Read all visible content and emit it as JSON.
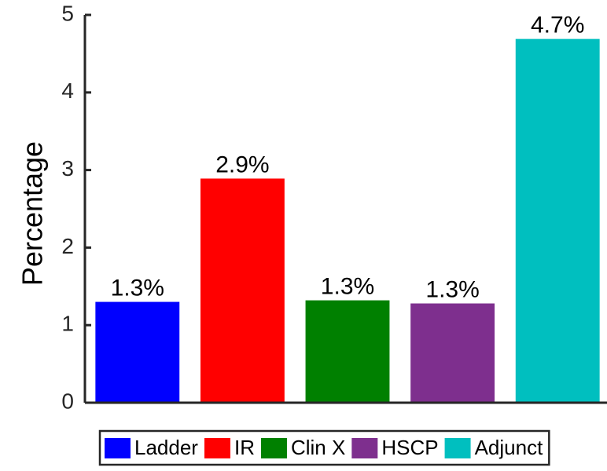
{
  "chart_data": {
    "type": "bar",
    "y_label": "Percentage",
    "series": [
      {
        "name": "Ladder",
        "color": "#0000ff",
        "values": [
          1.3
        ],
        "value_labels": [
          "1.3%"
        ]
      },
      {
        "name": "IR",
        "color": "#ff0000",
        "values": [
          2.89
        ],
        "value_labels": [
          "2.9%"
        ]
      },
      {
        "name": "Clin X",
        "color": "#008000",
        "values": [
          1.32
        ],
        "value_labels": [
          "1.3%"
        ]
      },
      {
        "name": "HSCP",
        "color": "#7e2f8e",
        "values": [
          1.28
        ],
        "value_labels": [
          "1.3%"
        ]
      },
      {
        "name": "Adjunct",
        "color": "#00bfbf",
        "values": [
          4.69
        ],
        "value_labels": [
          "4.7%"
        ]
      }
    ],
    "ylim": [
      0,
      5
    ],
    "yticks": [
      0,
      1,
      2,
      3,
      4,
      5
    ],
    "grid": false,
    "legend": "bottom"
  }
}
